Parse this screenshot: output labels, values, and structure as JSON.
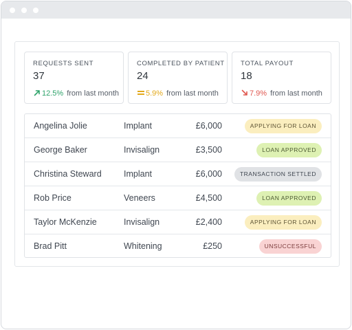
{
  "stats": [
    {
      "label": "REQUESTS SENT",
      "value": "37",
      "trend": {
        "direction": "up",
        "icon": "arrow-up-right-icon",
        "pct": "12.5%",
        "sub": "from last month",
        "color": "#2fa36b"
      }
    },
    {
      "label": "COMPLETED BY PATIENT",
      "value": "24",
      "trend": {
        "direction": "flat",
        "icon": "equals-icon",
        "pct": "5.9%",
        "sub": "from last month",
        "color": "#e3a91b"
      }
    },
    {
      "label": "TOTAL PAYOUT",
      "value": "18",
      "trend": {
        "direction": "down",
        "icon": "arrow-down-right-icon",
        "pct": "7.9%",
        "sub": "from last month",
        "color": "#e0574f"
      }
    }
  ],
  "rows": [
    {
      "name": "Angelina Jolie",
      "treatment": "Implant",
      "amount": "£6,000",
      "status": "APPLYING FOR LOAN",
      "status_bg": "#fbeebf",
      "status_fg": "#5d5334"
    },
    {
      "name": "George Baker",
      "treatment": "Invisalign",
      "amount": "£3,500",
      "status": "LOAN APPROVED",
      "status_bg": "#def1b3",
      "status_fg": "#4c5a33"
    },
    {
      "name": "Christina Steward",
      "treatment": "Implant",
      "amount": "£6,000",
      "status": "TRANSACTION SETTLED",
      "status_bg": "#e0e2e5",
      "status_fg": "#3f4650"
    },
    {
      "name": "Rob Price",
      "treatment": "Veneers",
      "amount": "£4,500",
      "status": "LOAN APPROVED",
      "status_bg": "#def1b3",
      "status_fg": "#4c5a33"
    },
    {
      "name": "Taylor McKenzie",
      "treatment": "Invisalign",
      "amount": "£2,400",
      "status": "APPLYING FOR LOAN",
      "status_bg": "#fbeebf",
      "status_fg": "#5d5334"
    },
    {
      "name": "Brad Pitt",
      "treatment": "Whitening",
      "amount": "£250",
      "status": "UNSUCCESSFUL",
      "status_bg": "#f9d3d3",
      "status_fg": "#7a3b3b"
    }
  ],
  "colors": {
    "titlebar": "#e7e9ec",
    "border": "#dfe2e6"
  }
}
